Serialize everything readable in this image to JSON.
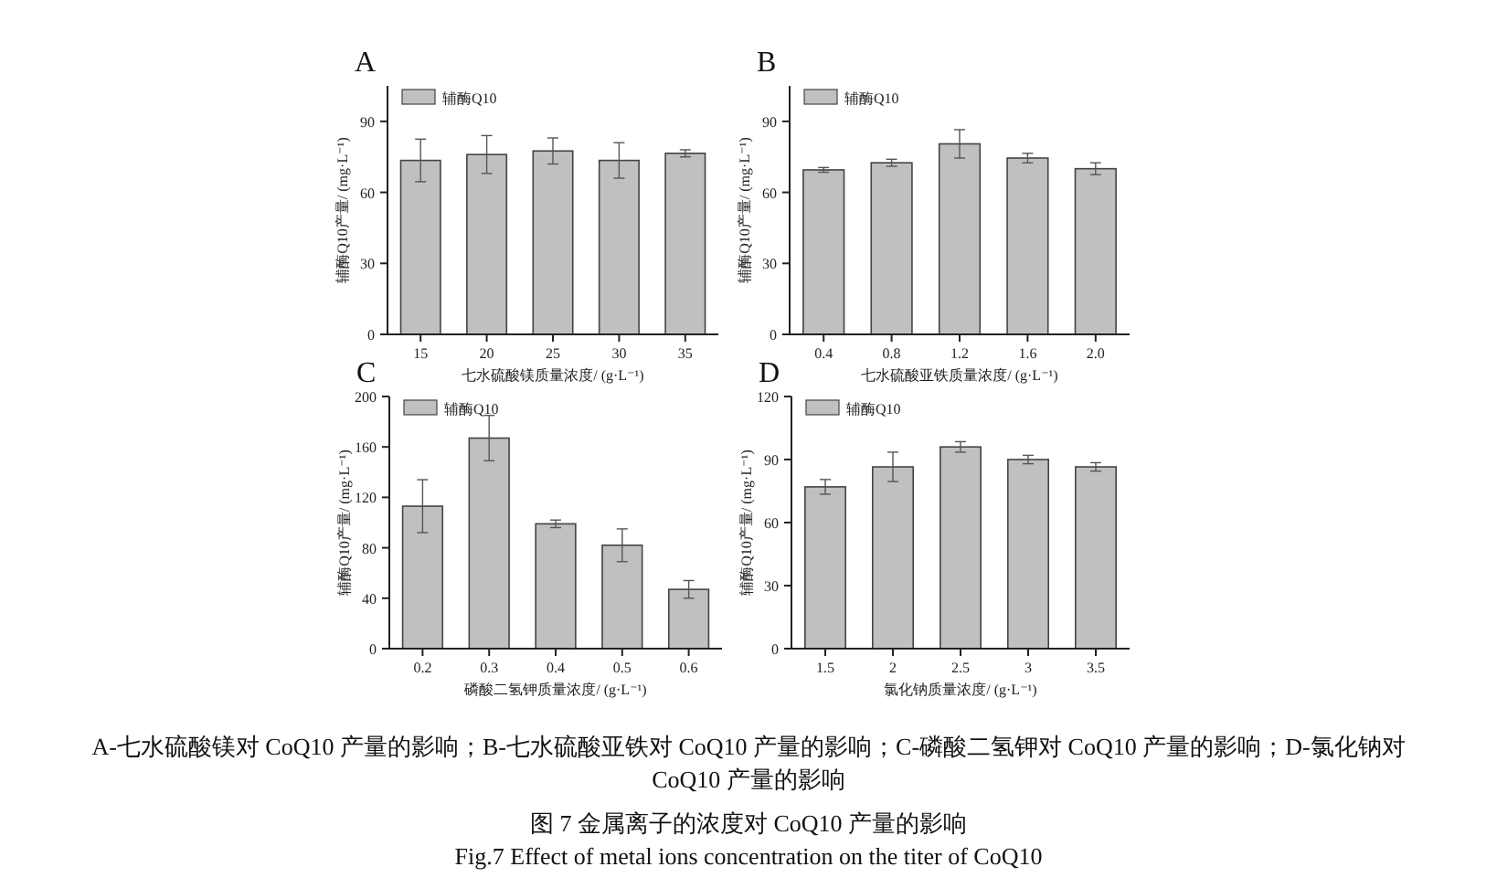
{
  "chart_data": [
    {
      "type": "bar",
      "title": "A",
      "xlabel": "七水硫酸镁质量浓度/ (g·L⁻¹)",
      "ylabel": "辅酶Q10产量/ (mg·L⁻¹)",
      "categories": [
        "15",
        "20",
        "25",
        "30",
        "35"
      ],
      "series": [
        {
          "name": "辅酶Q10",
          "color": "#c0c0c0",
          "values": [
            73.5,
            76,
            77.5,
            73.5,
            76.5
          ],
          "errors": [
            9,
            8,
            5.5,
            7.5,
            1.5
          ]
        }
      ],
      "ylim": [
        0,
        105
      ],
      "yticks": [
        0,
        30,
        60,
        90
      ],
      "legend": "top left",
      "grid": false
    },
    {
      "type": "bar",
      "title": "B",
      "xlabel": "七水硫酸亚铁质量浓度/ (g·L⁻¹)",
      "ylabel": "辅酶Q10产量/ (mg·L⁻¹)",
      "categories": [
        "0.4",
        "0.8",
        "1.2",
        "1.6",
        "2.0"
      ],
      "series": [
        {
          "name": "辅酶Q10",
          "color": "#c0c0c0",
          "values": [
            69.5,
            72.5,
            80.5,
            74.5,
            70
          ],
          "errors": [
            1,
            1.5,
            6,
            2,
            2.5
          ]
        }
      ],
      "ylim": [
        0,
        105
      ],
      "yticks": [
        0,
        30,
        60,
        90
      ],
      "legend": "top left",
      "grid": false
    },
    {
      "type": "bar",
      "title": "C",
      "xlabel": "磷酸二氢钾质量浓度/ (g·L⁻¹)",
      "ylabel": "辅酶Q10产量/ (mg·L⁻¹)",
      "categories": [
        "0.2",
        "0.3",
        "0.4",
        "0.5",
        "0.6"
      ],
      "series": [
        {
          "name": "辅酶Q10",
          "color": "#c0c0c0",
          "values": [
            113,
            167,
            99,
            82,
            47
          ],
          "errors": [
            21,
            18,
            3,
            13,
            7
          ]
        }
      ],
      "ylim": [
        0,
        200
      ],
      "yticks": [
        0,
        40,
        80,
        120,
        160,
        200
      ],
      "legend": "top left",
      "grid": false
    },
    {
      "type": "bar",
      "title": "D",
      "xlabel": "氯化钠质量浓度/ (g·L⁻¹)",
      "ylabel": "辅酶Q10产量/ (mg·L⁻¹)",
      "categories": [
        "1.5",
        "2",
        "2.5",
        "3",
        "3.5"
      ],
      "series": [
        {
          "name": "辅酶Q10",
          "color": "#c0c0c0",
          "values": [
            77,
            86.5,
            96,
            90,
            86.5
          ],
          "errors": [
            3.5,
            7,
            2.5,
            2,
            2
          ]
        }
      ],
      "ylim": [
        0,
        120
      ],
      "yticks": [
        0,
        30,
        60,
        90,
        120
      ],
      "legend": "top left",
      "grid": false
    },
    {
      "type": "other",
      "annotations": [
        "A-七水硫酸镁对 CoQ10 产量的影响；B-七水硫酸亚铁对 CoQ10 产量的影响；C-磷酸二氢钾对 CoQ10 产量的影响；D-氯化钠对 CoQ10 产量的影响",
        "图 7  金属离子的浓度对 CoQ10 产量的影响",
        "Fig.7 Effect of metal ions concentration on the titer of CoQ10"
      ]
    }
  ]
}
